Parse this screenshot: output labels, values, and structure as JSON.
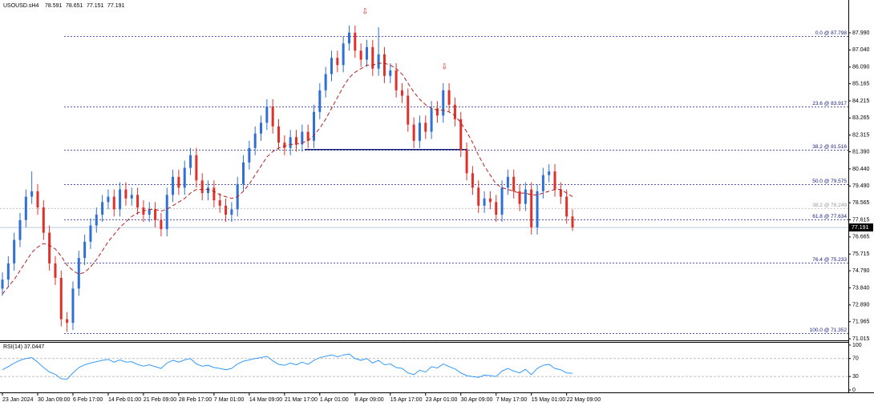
{
  "chart_data": [
    {
      "type": "candlestick",
      "symbol": "USOUSD.sH4",
      "header_values": [
        78.591,
        78.651,
        77.151,
        77.191
      ],
      "categories": [
        "23 Jan 2024",
        null,
        null,
        null,
        null,
        null,
        "30 Jan 09:00",
        null,
        null,
        null,
        null,
        null,
        "6 Feb 17:00",
        null,
        null,
        null,
        null,
        null,
        "14 Feb 01:00",
        null,
        null,
        null,
        null,
        null,
        "21 Feb 09:00",
        null,
        null,
        null,
        null,
        null,
        "28 Feb 17:00",
        null,
        null,
        null,
        null,
        null,
        "7 Mar 01:00",
        null,
        null,
        null,
        null,
        null,
        "14 Mar 09:00",
        null,
        null,
        null,
        null,
        null,
        "21 Mar 17:00",
        null,
        null,
        null,
        null,
        null,
        "1 Apr 01:00",
        null,
        null,
        null,
        null,
        null,
        "8 Apr 09:00",
        null,
        null,
        null,
        null,
        null,
        "15 Apr 17:00",
        null,
        null,
        null,
        null,
        null,
        "23 Apr 01:00",
        null,
        null,
        null,
        null,
        null,
        "30 Apr 09:00",
        null,
        null,
        null,
        null,
        null,
        "7 May 17:00",
        null,
        null,
        null,
        null,
        null,
        "15 May 01:00",
        null,
        null,
        null,
        null,
        null,
        "22 May 09:00",
        null
      ],
      "open": [
        73.8,
        74.3,
        75.2,
        76.5,
        77.6,
        78.9,
        79.2,
        78.3,
        76.9,
        75.2,
        74.4,
        72.1,
        71.9,
        73.8,
        75.5,
        76.4,
        77.3,
        77.9,
        78.6,
        78.9,
        78.2,
        79.3,
        78.8,
        79.0,
        78.3,
        77.9,
        78.2,
        77.6,
        77.1,
        79.0,
        80.0,
        79.4,
        80.5,
        81.2,
        79.8,
        79.1,
        79.4,
        78.7,
        78.4,
        77.9,
        78.2,
        79.6,
        80.8,
        81.6,
        82.4,
        83.0,
        83.9,
        82.8,
        81.9,
        81.6,
        82.2,
        81.8,
        82.5,
        82.0,
        83.6,
        84.8,
        85.7,
        86.6,
        86.2,
        87.4,
        88.0,
        87.0,
        86.5,
        87.2,
        86.0,
        86.8,
        85.6,
        85.9,
        84.8,
        84.5,
        82.9,
        82.0,
        83.0,
        82.5,
        83.8,
        83.4,
        84.8,
        84.0,
        83.2,
        81.5,
        80.2,
        79.4,
        78.4,
        78.8,
        78.6,
        77.9,
        79.4,
        80.0,
        79.2,
        78.5,
        79.3,
        77.2,
        79.2,
        80.1,
        80.3,
        79.3,
        78.9,
        77.8
      ],
      "high": [
        74.7,
        75.6,
        76.9,
        78.0,
        79.3,
        80.3,
        79.6,
        78.7,
        77.3,
        75.6,
        74.8,
        72.5,
        74.2,
        75.9,
        76.8,
        77.7,
        78.3,
        79.0,
        79.3,
        79.3,
        79.7,
        79.7,
        79.4,
        79.4,
        78.7,
        78.6,
        78.6,
        78.0,
        79.4,
        80.4,
        80.4,
        80.9,
        81.6,
        81.6,
        80.2,
        79.8,
        79.8,
        79.1,
        78.8,
        78.6,
        80.0,
        81.2,
        82.0,
        82.8,
        83.4,
        84.3,
        84.3,
        83.2,
        82.3,
        82.6,
        82.6,
        82.9,
        82.9,
        84.0,
        85.2,
        86.1,
        87.0,
        87.0,
        87.8,
        88.4,
        88.4,
        87.4,
        87.6,
        87.6,
        88.3,
        87.2,
        86.3,
        86.3,
        85.2,
        84.9,
        83.3,
        83.4,
        83.4,
        84.2,
        84.2,
        85.2,
        85.2,
        84.4,
        83.6,
        81.9,
        80.6,
        79.8,
        79.2,
        79.2,
        79.0,
        79.8,
        80.4,
        80.4,
        79.6,
        79.7,
        79.7,
        79.6,
        80.5,
        80.7,
        80.7,
        79.7,
        79.3,
        78.2
      ],
      "low": [
        73.4,
        73.9,
        74.8,
        76.1,
        77.2,
        78.5,
        77.9,
        76.5,
        74.8,
        74.0,
        71.7,
        71.4,
        71.5,
        73.4,
        75.1,
        76.0,
        76.9,
        77.5,
        78.2,
        77.8,
        77.8,
        78.4,
        78.4,
        77.9,
        77.5,
        77.5,
        77.2,
        76.7,
        76.7,
        78.6,
        79.0,
        79.0,
        80.1,
        79.4,
        78.7,
        78.7,
        78.3,
        78.0,
        77.5,
        77.5,
        77.8,
        79.2,
        80.4,
        81.2,
        82.0,
        82.6,
        82.4,
        81.5,
        81.2,
        81.2,
        81.4,
        81.4,
        81.6,
        81.6,
        83.2,
        84.4,
        85.3,
        85.8,
        85.8,
        87.0,
        86.6,
        86.1,
        86.1,
        85.6,
        85.6,
        85.2,
        85.2,
        84.4,
        84.1,
        82.5,
        81.6,
        81.6,
        82.1,
        82.1,
        83.0,
        83.0,
        83.6,
        82.8,
        81.1,
        79.8,
        79.0,
        78.0,
        78.0,
        78.2,
        77.5,
        77.5,
        79.0,
        78.8,
        78.1,
        78.1,
        76.8,
        76.8,
        78.8,
        79.7,
        78.9,
        78.5,
        77.4,
        77.0
      ],
      "close": [
        74.3,
        75.2,
        76.5,
        77.6,
        78.9,
        79.2,
        78.3,
        76.9,
        75.2,
        74.4,
        72.1,
        71.9,
        73.8,
        75.5,
        76.4,
        77.3,
        77.9,
        78.6,
        78.9,
        78.2,
        79.3,
        78.8,
        79.0,
        78.3,
        77.9,
        78.2,
        77.6,
        77.1,
        79.0,
        80.0,
        79.4,
        80.5,
        81.2,
        79.8,
        79.1,
        79.4,
        78.7,
        78.4,
        77.9,
        78.2,
        79.6,
        80.8,
        81.6,
        82.4,
        83.0,
        83.9,
        82.8,
        81.9,
        81.6,
        82.2,
        81.8,
        82.5,
        82.0,
        83.6,
        84.8,
        85.7,
        86.6,
        86.2,
        87.4,
        88.0,
        87.0,
        86.5,
        87.2,
        86.0,
        86.8,
        85.6,
        85.9,
        84.8,
        84.5,
        82.9,
        82.0,
        83.0,
        82.5,
        83.8,
        83.4,
        84.8,
        84.0,
        83.2,
        81.5,
        80.2,
        79.4,
        78.4,
        78.8,
        78.6,
        77.9,
        79.4,
        80.0,
        79.2,
        78.5,
        79.3,
        77.2,
        79.2,
        80.1,
        80.3,
        79.3,
        78.9,
        77.8,
        77.19
      ],
      "ma": [
        73.5,
        73.9,
        74.3,
        74.8,
        75.3,
        75.8,
        76.1,
        76.3,
        76.2,
        76.0,
        75.6,
        75.1,
        74.8,
        74.6,
        74.7,
        75.0,
        75.4,
        75.9,
        76.4,
        76.8,
        77.2,
        77.5,
        77.8,
        78.0,
        78.1,
        78.2,
        78.2,
        78.1,
        78.2,
        78.4,
        78.6,
        78.8,
        79.1,
        79.3,
        79.3,
        79.3,
        79.2,
        79.0,
        78.9,
        78.8,
        78.9,
        79.2,
        79.6,
        80.1,
        80.6,
        81.1,
        81.4,
        81.6,
        81.7,
        81.8,
        81.8,
        81.9,
        82.0,
        82.3,
        82.7,
        83.2,
        83.8,
        84.4,
        85.0,
        85.5,
        85.8,
        86.0,
        86.2,
        86.2,
        86.3,
        86.3,
        86.2,
        86.0,
        85.7,
        85.2,
        84.7,
        84.3,
        84.0,
        83.8,
        83.7,
        83.7,
        83.6,
        83.4,
        83.0,
        82.5,
        81.9,
        81.2,
        80.6,
        80.1,
        79.6,
        79.4,
        79.3,
        79.2,
        79.1,
        79.1,
        79.0,
        79.0,
        79.1,
        79.2,
        79.3,
        79.3,
        79.1,
        78.9
      ],
      "bull_color": "#2f6fd6",
      "bear_color": "#e0302a",
      "ma_color": "#b22222",
      "fib_levels": [
        {
          "label": "0.0 @ 87.798",
          "price": 87.798
        },
        {
          "label": "23.6 @ 83.917",
          "price": 83.917
        },
        {
          "label": "38.2 @ 81.516",
          "price": 81.516
        },
        {
          "label": "50.0 @ 79.575",
          "price": 79.575
        },
        {
          "label": "61.8 @ 77.634",
          "price": 77.634
        },
        {
          "label": "76.4 @ 75.233",
          "price": 75.233
        },
        {
          "label": "100.0 @ 71.352",
          "price": 71.352
        }
      ],
      "fib_secondary": {
        "label": "38.2 @ 78.249",
        "price": 78.249
      },
      "neckline": 81.516,
      "current_price": 77.191,
      "ylim": [
        70.93,
        89.81
      ],
      "yticks": [
        {
          "value": 87.99,
          "label": "87.990"
        },
        {
          "value": 87.04,
          "label": "87.040"
        },
        {
          "value": 86.09,
          "label": "86.090"
        },
        85.165,
        84.215,
        83.265,
        82.315,
        {
          "value": 81.39,
          "label": "81.390"
        },
        {
          "value": 80.44,
          "label": "80.440"
        },
        {
          "value": 79.49,
          "label": "79.490"
        },
        78.565,
        77.615,
        76.665,
        75.715,
        {
          "value": 74.79,
          "label": "74.790"
        },
        {
          "value": 73.84,
          "label": "73.840"
        },
        {
          "value": 72.89,
          "label": "72.890"
        },
        71.965,
        71.015
      ]
    },
    {
      "type": "line",
      "title": "RSI(14)",
      "current": 37.0447,
      "color": "#1e90ff",
      "values": [
        45,
        52,
        60,
        66,
        70,
        72,
        62,
        50,
        40,
        35,
        25,
        24,
        38,
        50,
        56,
        60,
        63,
        66,
        68,
        62,
        67,
        62,
        63,
        57,
        53,
        56,
        52,
        48,
        60,
        66,
        62,
        67,
        70,
        58,
        53,
        55,
        50,
        48,
        45,
        48,
        58,
        64,
        67,
        70,
        72,
        75,
        65,
        57,
        55,
        60,
        56,
        62,
        57,
        66,
        72,
        75,
        78,
        74,
        78,
        80,
        70,
        66,
        70,
        60,
        66,
        56,
        58,
        50,
        48,
        38,
        34,
        44,
        40,
        52,
        49,
        58,
        52,
        47,
        38,
        32,
        30,
        28,
        33,
        32,
        30,
        42,
        48,
        42,
        38,
        46,
        34,
        48,
        55,
        57,
        48,
        45,
        38,
        37.04
      ],
      "ylim": [
        -5.4,
        107
      ],
      "yticks": [
        100,
        70,
        30,
        0
      ],
      "levels": [
        70,
        30
      ]
    }
  ]
}
